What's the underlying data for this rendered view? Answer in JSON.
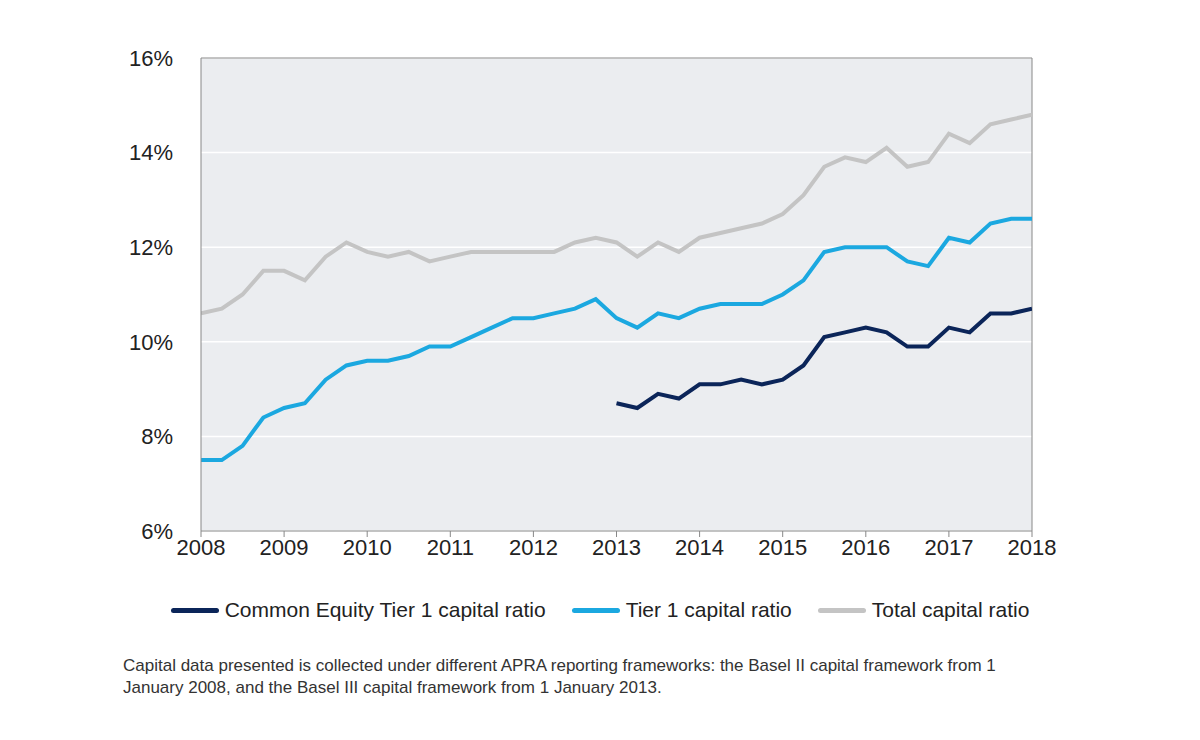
{
  "chart_data": {
    "type": "line",
    "caption": "Capital data presented is collected under different APRA reporting frameworks: the Basel II capital framework from 1 January 2008, and the Basel III capital framework from 1 January 2013.",
    "x": [
      2008,
      2008.25,
      2008.5,
      2008.75,
      2009,
      2009.25,
      2009.5,
      2009.75,
      2010,
      2010.25,
      2010.5,
      2010.75,
      2011,
      2011.25,
      2011.5,
      2011.75,
      2012,
      2012.25,
      2012.5,
      2012.75,
      2013,
      2013.25,
      2013.5,
      2013.75,
      2014,
      2014.25,
      2014.5,
      2014.75,
      2015,
      2015.25,
      2015.5,
      2015.75,
      2016,
      2016.25,
      2016.5,
      2016.75,
      2017,
      2017.25,
      2017.5,
      2017.75,
      2018
    ],
    "series": [
      {
        "name": "Common Equity Tier 1 capital ratio",
        "color": "#0b2559",
        "values": [
          null,
          null,
          null,
          null,
          null,
          null,
          null,
          null,
          null,
          null,
          null,
          null,
          null,
          null,
          null,
          null,
          null,
          null,
          null,
          null,
          8.7,
          8.6,
          8.9,
          8.8,
          9.1,
          9.1,
          9.2,
          9.1,
          9.2,
          9.5,
          10.1,
          10.2,
          10.3,
          10.2,
          9.9,
          9.9,
          10.3,
          10.2,
          10.6,
          10.6,
          10.7
        ]
      },
      {
        "name": "Tier 1 capital ratio",
        "color": "#1ba8e0",
        "values": [
          7.5,
          7.5,
          7.8,
          8.4,
          8.6,
          8.7,
          9.2,
          9.5,
          9.6,
          9.6,
          9.7,
          9.9,
          9.9,
          10.1,
          10.3,
          10.5,
          10.5,
          10.6,
          10.7,
          10.9,
          10.5,
          10.3,
          10.6,
          10.5,
          10.7,
          10.8,
          10.8,
          10.8,
          11.0,
          11.3,
          11.9,
          12.0,
          12.0,
          12.0,
          11.7,
          11.6,
          12.2,
          12.1,
          12.5,
          12.6,
          12.6
        ]
      },
      {
        "name": "Total capital ratio",
        "color": "#c4c4c4",
        "values": [
          10.6,
          10.7,
          11.0,
          11.5,
          11.5,
          11.3,
          11.8,
          12.1,
          11.9,
          11.8,
          11.9,
          11.7,
          11.8,
          11.9,
          11.9,
          11.9,
          11.9,
          11.9,
          12.1,
          12.2,
          12.1,
          11.8,
          12.1,
          11.9,
          12.2,
          12.3,
          12.4,
          12.5,
          12.7,
          13.1,
          13.7,
          13.9,
          13.8,
          14.1,
          13.7,
          13.8,
          14.4,
          14.2,
          14.6,
          14.7,
          14.8
        ]
      }
    ],
    "xlim": [
      2008,
      2018
    ],
    "xticks": [
      2008,
      2009,
      2010,
      2011,
      2012,
      2013,
      2014,
      2015,
      2016,
      2017,
      2018
    ],
    "ylim": [
      6,
      16
    ],
    "yticks": [
      {
        "value": 6,
        "label": "6%"
      },
      {
        "value": 8,
        "label": "8%"
      },
      {
        "value": 10,
        "label": "10%"
      },
      {
        "value": 12,
        "label": "12%"
      },
      {
        "value": 14,
        "label": "14%"
      },
      {
        "value": 16,
        "label": "16%"
      }
    ],
    "grid": true,
    "legend": "bottom"
  }
}
